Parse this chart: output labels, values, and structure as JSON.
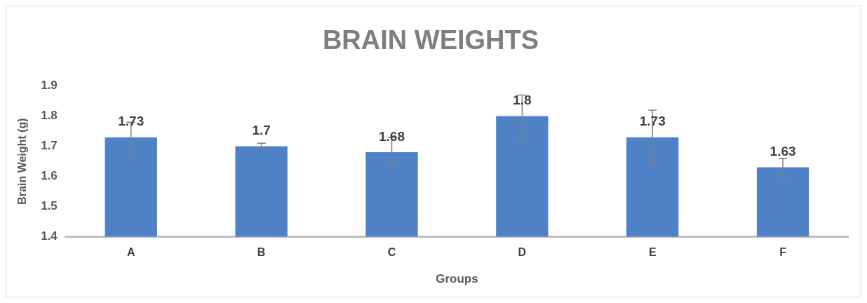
{
  "chart_data": {
    "type": "bar",
    "title": "BRAIN WEIGHTS",
    "xlabel": "Groups",
    "ylabel": "Brain Weight (g)",
    "categories": [
      "A",
      "B",
      "C",
      "D",
      "E",
      "F"
    ],
    "values": [
      1.73,
      1.7,
      1.68,
      1.8,
      1.73,
      1.63
    ],
    "errors": [
      0.05,
      0.01,
      0.05,
      0.07,
      0.09,
      0.03
    ],
    "color": "#4f81c7",
    "ylim": [
      1.4,
      1.9
    ],
    "yticks": [
      1.4,
      1.5,
      1.6,
      1.7,
      1.8,
      1.9
    ],
    "grid": false,
    "legend": false,
    "data_labels": true
  }
}
